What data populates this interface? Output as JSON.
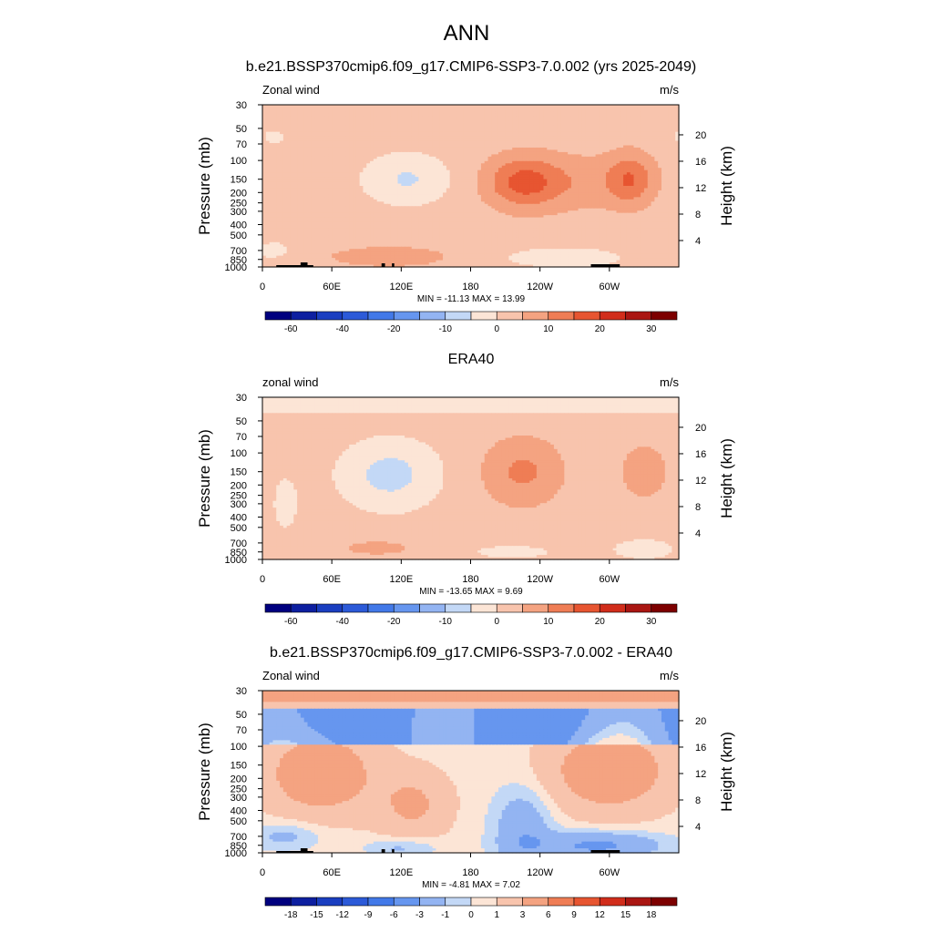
{
  "main_title": "ANN",
  "panels": [
    {
      "title": "b.e21.BSSP370cmip6.f09_g17.CMIP6-SSP3-7.0.002 (yrs 2025-2049)",
      "variable": "Zonal wind",
      "units": "m/s",
      "stats": "MIN = -11.13  MAX =  13.99",
      "colorbar_labels": [
        "-60",
        "-40",
        "-20",
        "-10",
        "0",
        "10",
        "20",
        "30"
      ]
    },
    {
      "title": "ERA40",
      "variable": "zonal wind",
      "units": "m/s",
      "stats": "MIN = -13.65  MAX =   9.69",
      "colorbar_labels": [
        "-60",
        "-40",
        "-20",
        "-10",
        "0",
        "10",
        "20",
        "30"
      ]
    },
    {
      "title": "b.e21.BSSP370cmip6.f09_g17.CMIP6-SSP3-7.0.002 - ERA40",
      "variable": "Zonal wind",
      "units": "m/s",
      "stats": "MIN =  -4.81  MAX =   7.02",
      "colorbar_labels": [
        "-18",
        "-15",
        "-12",
        "-9",
        "-6",
        "-3",
        "-1",
        "0",
        "1",
        "3",
        "6",
        "9",
        "12",
        "15",
        "18"
      ]
    }
  ],
  "chart_data": [
    {
      "type": "heatmap",
      "title": "b.e21.BSSP370cmip6.f09_g17.CMIP6-SSP3-7.0.002 (yrs 2025-2049)",
      "xlabel": "",
      "ylabel": "Pressure (mb)",
      "ylabel_right": "Height (km)",
      "x_tick_labels": [
        "0",
        "60E",
        "120E",
        "180",
        "120W",
        "60W"
      ],
      "y_tick_labels": [
        "30",
        "50",
        "70",
        "100",
        "150",
        "200",
        "250",
        "300",
        "400",
        "500",
        "700",
        "850",
        "1000"
      ],
      "y_right_tick_labels": [
        "20",
        "16",
        "12",
        "8",
        "4"
      ],
      "xlim": [
        0,
        360
      ],
      "ylim": [
        1000,
        30
      ],
      "y_scale": "log",
      "colorbar_levels": [
        -70,
        -60,
        -50,
        -40,
        -30,
        -20,
        -15,
        -10,
        -5,
        0,
        5,
        10,
        15,
        20,
        25,
        30,
        35
      ],
      "colors": [
        "#00007f",
        "#0d1fa0",
        "#1a3ec0",
        "#2c5ad8",
        "#4279e8",
        "#6696ef",
        "#93b4f2",
        "#c3d8f6",
        "#fce5d6",
        "#f8c4ad",
        "#f4a381",
        "#ef7d55",
        "#e75531",
        "#d12d1b",
        "#aa1612",
        "#7d0000"
      ],
      "min": -11.13,
      "max": 13.99,
      "features": [
        {
          "desc": "weak westerly",
          "x": [
            0,
            360
          ],
          "p": [
            30,
            1000
          ],
          "u": 2
        },
        {
          "desc": "easterly maximum",
          "x": [
            95,
            145
          ],
          "p": [
            100,
            200
          ],
          "u": -8
        },
        {
          "desc": "westerly maximum",
          "x": [
            220,
            270
          ],
          "p": [
            120,
            200
          ],
          "u": 12
        },
        {
          "desc": "westerly maximum",
          "x": [
            305,
            330
          ],
          "p": [
            100,
            200
          ],
          "u": 12
        },
        {
          "desc": "lower-tropospheric westerly",
          "x": [
            60,
            180
          ],
          "p": [
            700,
            950
          ],
          "u": 5
        },
        {
          "desc": "lower-tropospheric easterly",
          "x": [
            185,
            360
          ],
          "p": [
            700,
            1000
          ],
          "u": -3
        }
      ]
    },
    {
      "type": "heatmap",
      "title": "ERA40",
      "xlabel": "",
      "ylabel": "Pressure (mb)",
      "ylabel_right": "Height (km)",
      "x_tick_labels": [
        "0",
        "60E",
        "120E",
        "180",
        "120W",
        "60W"
      ],
      "y_tick_labels": [
        "30",
        "50",
        "70",
        "100",
        "150",
        "200",
        "250",
        "300",
        "400",
        "500",
        "700",
        "850",
        "1000"
      ],
      "y_right_tick_labels": [
        "20",
        "16",
        "12",
        "8",
        "4"
      ],
      "xlim": [
        0,
        360
      ],
      "ylim": [
        1000,
        30
      ],
      "y_scale": "log",
      "colorbar_levels": [
        -70,
        -60,
        -50,
        -40,
        -30,
        -20,
        -15,
        -10,
        -5,
        0,
        5,
        10,
        15,
        20,
        25,
        30,
        35
      ],
      "colors": [
        "#00007f",
        "#0d1fa0",
        "#1a3ec0",
        "#2c5ad8",
        "#4279e8",
        "#6696ef",
        "#93b4f2",
        "#c3d8f6",
        "#fce5d6",
        "#f8c4ad",
        "#f4a381",
        "#ef7d55",
        "#e75531",
        "#d12d1b",
        "#aa1612",
        "#7d0000"
      ],
      "min": -13.65,
      "max": 9.69,
      "features": [
        {
          "desc": "easterly layer",
          "x": [
            0,
            360
          ],
          "p": [
            30,
            40
          ],
          "u": -3
        },
        {
          "desc": "easterly maximum",
          "x": [
            60,
            140
          ],
          "p": [
            100,
            300
          ],
          "u": -7
        },
        {
          "desc": "westerly maximum",
          "x": [
            200,
            290
          ],
          "p": [
            80,
            300
          ],
          "u": 8
        },
        {
          "desc": "westerly maximum",
          "x": [
            320,
            340
          ],
          "p": [
            100,
            250
          ],
          "u": 7
        }
      ]
    },
    {
      "type": "heatmap",
      "title": "b.e21.BSSP370cmip6.f09_g17.CMIP6-SSP3-7.0.002 - ERA40",
      "xlabel": "",
      "ylabel": "Pressure (mb)",
      "ylabel_right": "Height (km)",
      "x_tick_labels": [
        "0",
        "60E",
        "120E",
        "180",
        "120W",
        "60W"
      ],
      "y_tick_labels": [
        "30",
        "50",
        "70",
        "100",
        "150",
        "200",
        "250",
        "300",
        "400",
        "500",
        "700",
        "850",
        "1000"
      ],
      "y_right_tick_labels": [
        "20",
        "16",
        "12",
        "8",
        "4"
      ],
      "xlim": [
        0,
        360
      ],
      "ylim": [
        1000,
        30
      ],
      "y_scale": "log",
      "colorbar_levels": [
        -21,
        -18,
        -15,
        -12,
        -9,
        -6,
        -3,
        -1,
        0,
        1,
        3,
        6,
        9,
        12,
        15,
        18,
        21
      ],
      "colors": [
        "#00007f",
        "#0d1fa0",
        "#1a3ec0",
        "#2c5ad8",
        "#4279e8",
        "#6696ef",
        "#93b4f2",
        "#c3d8f6",
        "#fce5d6",
        "#f8c4ad",
        "#f4a381",
        "#ef7d55",
        "#e75531",
        "#d12d1b",
        "#aa1612",
        "#7d0000"
      ],
      "min": -4.81,
      "max": 7.02,
      "features": [
        {
          "desc": "positive layer",
          "x": [
            0,
            360
          ],
          "p": [
            30,
            45
          ],
          "u": 3
        },
        {
          "desc": "negative layer",
          "x": [
            0,
            360
          ],
          "p": [
            45,
            90
          ],
          "u": -3
        },
        {
          "desc": "positive maximum",
          "x": [
            20,
            100
          ],
          "p": [
            120,
            300
          ],
          "u": 5
        },
        {
          "desc": "positive maximum",
          "x": [
            250,
            360
          ],
          "p": [
            100,
            400
          ],
          "u": 5
        },
        {
          "desc": "negative near surface",
          "x": [
            190,
            360
          ],
          "p": [
            600,
            1000
          ],
          "u": -3
        }
      ]
    }
  ]
}
